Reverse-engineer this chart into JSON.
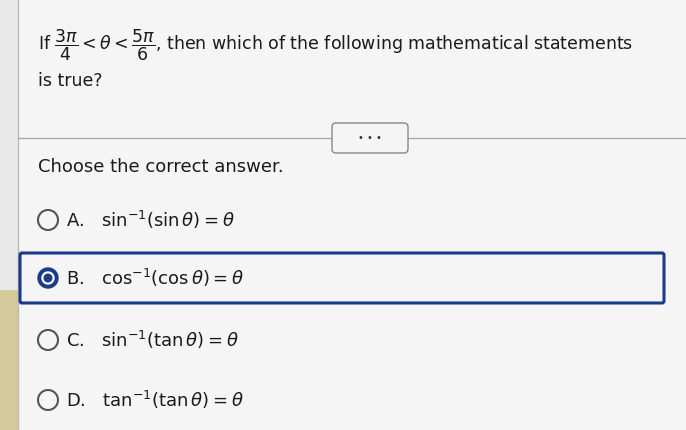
{
  "bg_color": "#e8e8e8",
  "left_strip_color": "#d4c99a",
  "panel_color": "#f5f5f5",
  "title_line1": "If $\\dfrac{3\\pi}{4} < \\theta < \\dfrac{5\\pi}{6}$, then which of the following mathematical statements",
  "title_line2": "is true?",
  "subtitle": "Choose the correct answer.",
  "options": [
    {
      "label": "A.",
      "text": "$\\mathrm{sin}^{-1}(\\sin\\theta) = \\theta$",
      "selected": false,
      "highlighted": false
    },
    {
      "label": "B.",
      "text": "$\\mathrm{cos}^{-1}(\\cos\\theta) = \\theta$",
      "selected": true,
      "highlighted": true
    },
    {
      "label": "C.",
      "text": "$\\mathrm{sin}^{-1}(\\tan\\theta) = \\theta$",
      "selected": false,
      "highlighted": false
    },
    {
      "label": "D.",
      "text": "$\\mathrm{tan}^{-1}(\\tan\\theta) = \\theta$",
      "selected": false,
      "highlighted": false
    }
  ],
  "dots_button_text": "...",
  "selected_ring_color": "#1a3a8a",
  "selected_fill_color": "#1a3a8a",
  "highlight_box_color": "#1a3a8a",
  "highlight_box_fill": "#f5f5f5",
  "text_color": "#1a1a1a",
  "radio_empty_color": "#555555",
  "font_size_title": 12.5,
  "font_size_options": 13,
  "font_size_subtitle": 13
}
